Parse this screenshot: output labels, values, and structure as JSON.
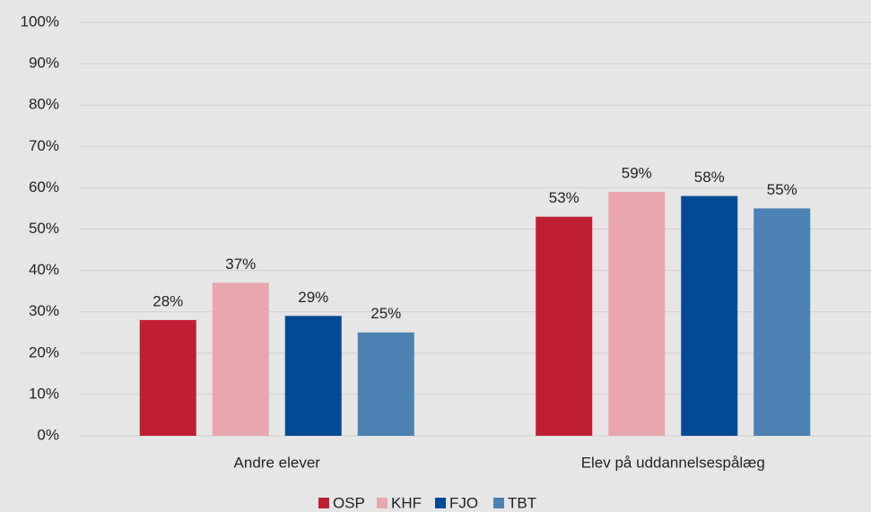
{
  "chart_data": {
    "type": "bar",
    "categories": [
      "Andre elever",
      "Elev på uddannelsespålæg"
    ],
    "series": [
      {
        "name": "OSP",
        "color": "#c01f32",
        "values": [
          28,
          53
        ],
        "value_labels": [
          "28%",
          "53%"
        ]
      },
      {
        "name": "KHF",
        "color": "#e8a7ad",
        "values": [
          37,
          59
        ],
        "value_labels": [
          "37%",
          "59%"
        ]
      },
      {
        "name": "FJO",
        "color": "#004a97",
        "values": [
          29,
          58
        ],
        "value_labels": [
          "29%",
          "58%"
        ]
      },
      {
        "name": "TBT",
        "color": "#4a82b4",
        "values": [
          25,
          55
        ],
        "value_labels": [
          "25%",
          "55%"
        ]
      }
    ],
    "ylim": [
      0,
      100
    ],
    "yticks": [
      {
        "value": 0,
        "label": "0%"
      },
      {
        "value": 10,
        "label": "10%"
      },
      {
        "value": 20,
        "label": "20%"
      },
      {
        "value": 30,
        "label": "30%"
      },
      {
        "value": 40,
        "label": "40%"
      },
      {
        "value": 50,
        "label": "50%"
      },
      {
        "value": 60,
        "label": "60%"
      },
      {
        "value": 70,
        "label": "70%"
      },
      {
        "value": 80,
        "label": "80%"
      },
      {
        "value": 90,
        "label": "90%"
      },
      {
        "value": 100,
        "label": "100%"
      }
    ],
    "grid": true,
    "legend": "bottom"
  }
}
